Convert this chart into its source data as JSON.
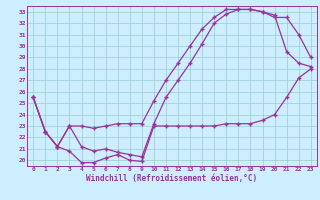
{
  "xlabel": "Windchill (Refroidissement éolien,°C)",
  "background_color": "#cceeff",
  "line_color": "#993399",
  "xlim": [
    -0.5,
    23.5
  ],
  "ylim": [
    19.5,
    33.5
  ],
  "xticks": [
    0,
    1,
    2,
    3,
    4,
    5,
    6,
    7,
    8,
    9,
    10,
    11,
    12,
    13,
    14,
    15,
    16,
    17,
    18,
    19,
    20,
    21,
    22,
    23
  ],
  "yticks": [
    20,
    21,
    22,
    23,
    24,
    25,
    26,
    27,
    28,
    29,
    30,
    31,
    32,
    33
  ],
  "line1_x": [
    0,
    1,
    2,
    3,
    4,
    5,
    6,
    7,
    8,
    9,
    10,
    11,
    12,
    13,
    14,
    15,
    16,
    17,
    18,
    19,
    20,
    21,
    22,
    23
  ],
  "line1_y": [
    25.5,
    22.5,
    21.2,
    20.8,
    19.8,
    19.8,
    20.2,
    20.5,
    20.0,
    19.9,
    23.0,
    23.0,
    23.0,
    23.0,
    23.0,
    23.0,
    23.2,
    23.2,
    23.2,
    23.5,
    24.0,
    25.5,
    27.2,
    28.0
  ],
  "line2_x": [
    0,
    1,
    2,
    3,
    4,
    5,
    6,
    7,
    8,
    9,
    10,
    11,
    12,
    13,
    14,
    15,
    16,
    17,
    18,
    19,
    20,
    21,
    22,
    23
  ],
  "line2_y": [
    25.5,
    22.5,
    21.2,
    23.0,
    21.2,
    20.8,
    21.0,
    20.7,
    20.5,
    20.3,
    23.2,
    25.5,
    27.0,
    28.5,
    30.2,
    32.0,
    32.8,
    33.2,
    33.2,
    33.0,
    32.5,
    32.5,
    31.0,
    29.0
  ],
  "line3_x": [
    0,
    1,
    2,
    3,
    4,
    5,
    6,
    7,
    8,
    9,
    10,
    11,
    12,
    13,
    14,
    15,
    16,
    17,
    18,
    19,
    20,
    21,
    22,
    23
  ],
  "line3_y": [
    25.5,
    22.5,
    21.2,
    23.0,
    23.0,
    22.8,
    23.0,
    23.2,
    23.2,
    23.2,
    25.2,
    27.0,
    28.5,
    30.0,
    31.5,
    32.5,
    33.2,
    33.2,
    33.2,
    33.0,
    32.7,
    29.5,
    28.5,
    28.2
  ],
  "grid_color": "#99cccc",
  "font_color": "#993399",
  "marker": "+",
  "markersize": 3.5,
  "linewidth": 0.9
}
